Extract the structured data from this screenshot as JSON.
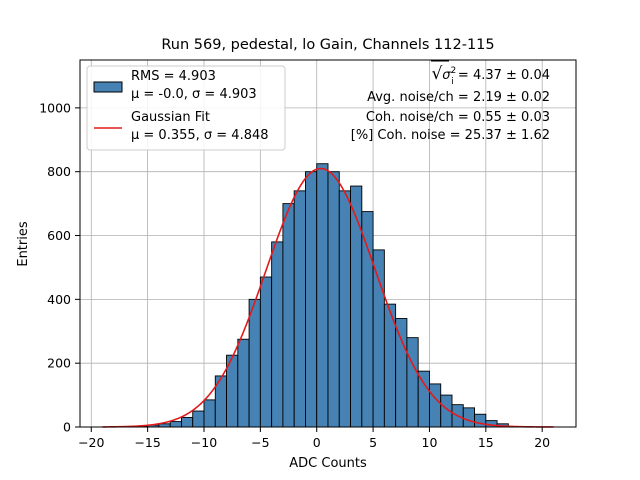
{
  "chart_data": {
    "type": "bar",
    "title": "Run 569, pedestal, lo Gain, Channels 112-115",
    "xlabel": "ADC Counts",
    "ylabel": "Entries",
    "xlim": [
      -21,
      23
    ],
    "ylim": [
      0,
      1150
    ],
    "xticks": [
      -20,
      -15,
      -10,
      -5,
      0,
      5,
      10,
      15,
      20
    ],
    "yticks": [
      0,
      200,
      400,
      600,
      800,
      1000
    ],
    "grid": true,
    "legend_position": "top-left",
    "bin_width": 1,
    "bin_starts": [
      -17,
      -16,
      -15,
      -14,
      -13,
      -12,
      -11,
      -10,
      -9,
      -8,
      -7,
      -6,
      -5,
      -4,
      -3,
      -2,
      -1,
      0,
      1,
      2,
      3,
      4,
      5,
      6,
      7,
      8,
      9,
      10,
      11,
      12,
      13,
      14,
      15,
      16
    ],
    "counts": [
      1,
      3,
      6,
      10,
      17,
      30,
      50,
      85,
      160,
      225,
      275,
      400,
      470,
      580,
      700,
      740,
      800,
      825,
      800,
      740,
      755,
      675,
      555,
      385,
      340,
      280,
      175,
      135,
      100,
      70,
      60,
      40,
      20,
      10
    ],
    "bar_color": "#4682b4",
    "fit": {
      "name": "Gaussian Fit",
      "mu": 0.355,
      "sigma": 4.848,
      "amplitude": 810,
      "x_range": [
        -19,
        21
      ],
      "color": "#e31a1c"
    },
    "legend": [
      {
        "kind": "bar",
        "lines": [
          "RMS = 4.903",
          "μ = -0.0, σ = 4.903"
        ]
      },
      {
        "kind": "line",
        "lines": [
          "Gaussian Fit",
          "μ = 0.355, σ = 4.848"
        ]
      }
    ],
    "annotations": [
      {
        "prefix": "√",
        "radicand": "σ",
        "radicand_sup": "2",
        "radicand_sub": "i",
        "rest": " = 4.37 ± 0.04"
      },
      {
        "text": "Avg. noise/ch = 2.19 ± 0.02"
      },
      {
        "text": "Coh. noise/ch = 0.55 ± 0.03"
      },
      {
        "text": "[%] Coh. noise = 25.37 ± 1.62"
      }
    ]
  }
}
